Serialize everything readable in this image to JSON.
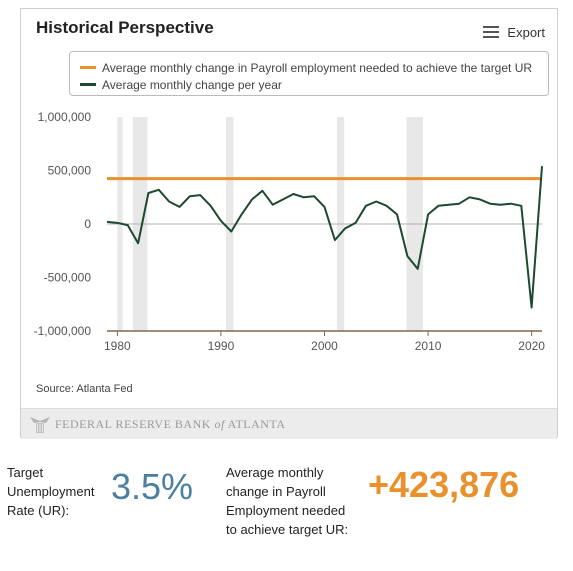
{
  "panel": {
    "title": "Historical Perspective",
    "export_label": "Export",
    "source": "Source: Atlanta Fed",
    "footer_text_prefix": "FEDERAL RESERVE BANK ",
    "footer_text_of": "of",
    "footer_text_suffix": " ATLANTA"
  },
  "chart_data": {
    "type": "line",
    "xlim": [
      1979,
      2021
    ],
    "ylim": [
      -1000000,
      1000000
    ],
    "y_ticks": [
      1000000,
      500000,
      0,
      -500000,
      -1000000
    ],
    "y_tick_labels": [
      "1,000,000",
      "500,000",
      "0",
      "-500,000",
      "-1,000,000"
    ],
    "x_ticks": [
      1980,
      1990,
      2000,
      2010,
      2020
    ],
    "x_tick_labels": [
      "1980",
      "1990",
      "2000",
      "2010",
      "2020"
    ],
    "recessions": [
      [
        1980.0,
        1980.5
      ],
      [
        1981.5,
        1982.9
      ],
      [
        1990.5,
        1991.2
      ],
      [
        2001.2,
        2001.9
      ],
      [
        2007.9,
        2009.5
      ]
    ],
    "legend_position": "top",
    "series": [
      {
        "name": "Average monthly change in Payroll employment needed to achieve the target UR",
        "color": "#e8912d",
        "x": [
          1979,
          2021
        ],
        "values": [
          423876,
          423876
        ]
      },
      {
        "name": "Average monthly change per year",
        "color": "#1d4a2e",
        "x": [
          1979,
          1980,
          1981,
          1982,
          1983,
          1984,
          1985,
          1986,
          1987,
          1988,
          1989,
          1990,
          1991,
          1992,
          1993,
          1994,
          1995,
          1996,
          1997,
          1998,
          1999,
          2000,
          2001,
          2002,
          2003,
          2004,
          2005,
          2006,
          2007,
          2008,
          2009,
          2010,
          2011,
          2012,
          2013,
          2014,
          2015,
          2016,
          2017,
          2018,
          2019,
          2020,
          2021
        ],
        "values": [
          20000,
          10000,
          -10000,
          -180000,
          290000,
          320000,
          210000,
          160000,
          260000,
          270000,
          170000,
          30000,
          -70000,
          90000,
          230000,
          310000,
          180000,
          230000,
          280000,
          250000,
          260000,
          160000,
          -150000,
          -40000,
          10000,
          170000,
          210000,
          170000,
          90000,
          -300000,
          -420000,
          90000,
          170000,
          180000,
          190000,
          250000,
          230000,
          190000,
          180000,
          190000,
          170000,
          -780000,
          540000
        ]
      }
    ]
  },
  "stats": {
    "target_label": "Target Unemployment Rate (UR):",
    "target_value": "3.5%",
    "payroll_label": "Average monthly change in Payroll Employment needed to achieve target UR:",
    "payroll_value": "+423,876"
  },
  "colors": {
    "orange": "#e8912d",
    "dark_green": "#1d4a2e",
    "blue_value": "#4a7fa0",
    "recession_band": "#e8e8e8"
  },
  "icons": {
    "export": "hamburger-menu-icon",
    "logo": "fed-eagle-icon"
  }
}
